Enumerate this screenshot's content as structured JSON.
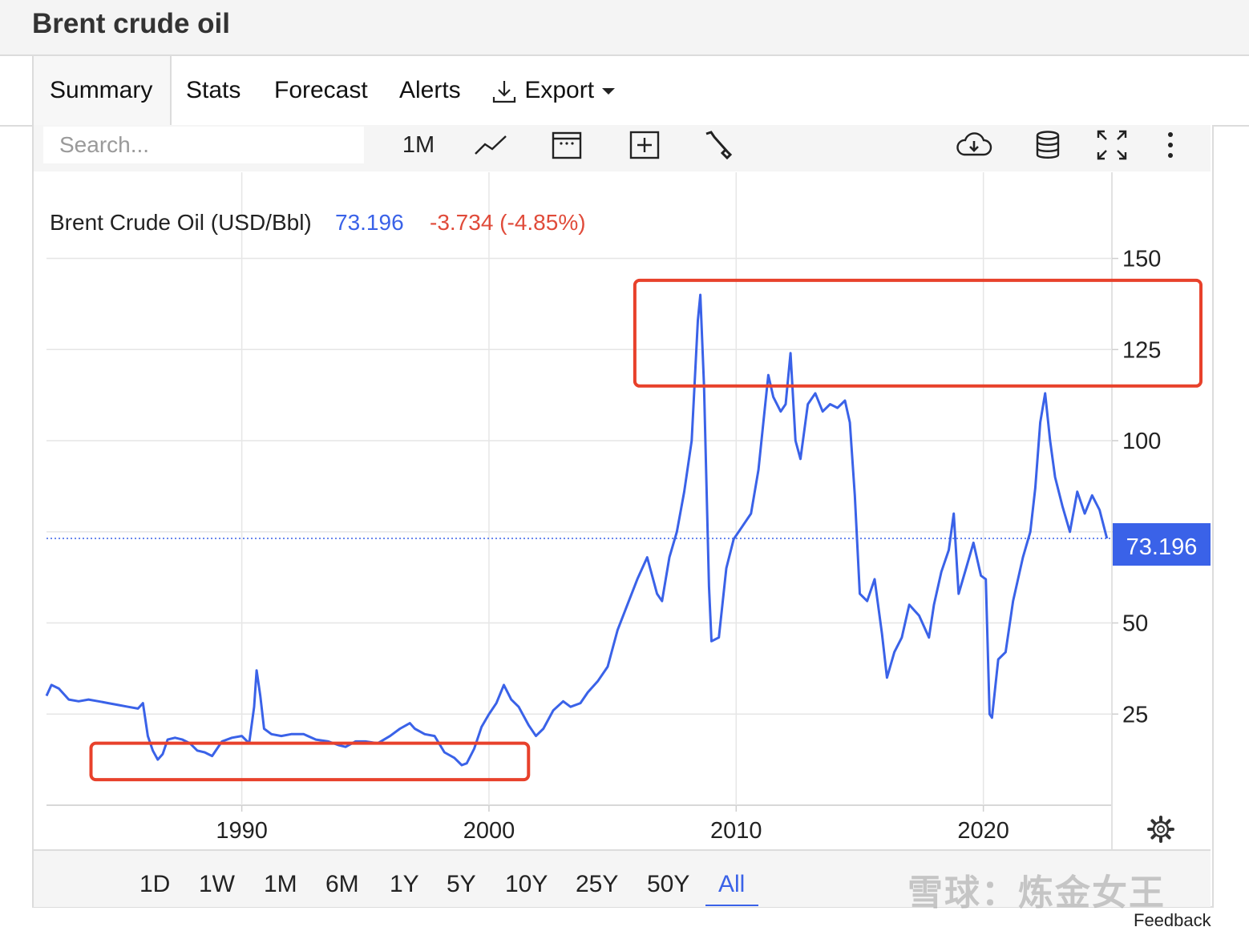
{
  "header": {
    "title": "Brent crude oil"
  },
  "tabs": [
    {
      "label": "Summary",
      "active": true
    },
    {
      "label": "Stats"
    },
    {
      "label": "Forecast"
    },
    {
      "label": "Alerts"
    },
    {
      "label": "Export",
      "icon": "download-icon"
    }
  ],
  "toolbar": {
    "search_placeholder": "Search...",
    "frequency_label": "1M",
    "icons": [
      "line-chart-icon",
      "calendar-icon",
      "add-indicator-icon",
      "wrench-icon",
      "cloud-download-icon",
      "database-icon",
      "fullscreen-icon",
      "more-icon"
    ]
  },
  "legend": {
    "name": "Brent Crude Oil (USD/Bbl)",
    "price": "73.196",
    "change": "-3.734 (-4.85%)",
    "price_color": "#3a62e8",
    "change_color": "#e04b3a"
  },
  "price_tag": "73.196",
  "colors": {
    "line": "#3a62e8",
    "highlight_box": "#e8412b",
    "grid": "#e6e6e6"
  },
  "chart_data": {
    "type": "line",
    "title": "",
    "xlabel": "",
    "ylabel": "",
    "xlim": [
      1982.1,
      2025.2
    ],
    "ylim": [
      0,
      151
    ],
    "x_ticks": [
      "1990",
      "2000",
      "2010",
      "2020"
    ],
    "x_tick_values": [
      1990,
      2000,
      2010,
      2020
    ],
    "y_ticks": [
      "25",
      "50",
      "100",
      "125",
      "150"
    ],
    "y_tick_values": [
      25,
      50,
      100,
      125,
      150
    ],
    "grid": true,
    "last_value": 73.196,
    "series": [
      {
        "x": [
          1982.1,
          1982.3,
          1982.6,
          1983.0,
          1983.4,
          1983.8,
          1984.2,
          1984.6,
          1985.0,
          1985.4,
          1985.8,
          1986.0,
          1986.2,
          1986.4,
          1986.6,
          1986.8,
          1987.0,
          1987.3,
          1987.6,
          1987.9,
          1988.2,
          1988.5,
          1988.8,
          1989.2,
          1989.6,
          1990.0,
          1990.3,
          1990.5,
          1990.6,
          1990.75,
          1990.9,
          1991.2,
          1991.6,
          1992.0,
          1992.5,
          1993.0,
          1993.5,
          1993.9,
          1994.2,
          1994.6,
          1995.0,
          1995.5,
          1996.0,
          1996.4,
          1996.8,
          1997.0,
          1997.4,
          1997.8,
          1998.2,
          1998.6,
          1998.9,
          1999.1,
          1999.4,
          1999.7,
          2000.0,
          2000.3,
          2000.6,
          2000.9,
          2001.2,
          2001.6,
          2001.9,
          2002.2,
          2002.6,
          2003.0,
          2003.3,
          2003.7,
          2004.0,
          2004.4,
          2004.8,
          2005.2,
          2005.6,
          2006.0,
          2006.4,
          2006.8,
          2007.0,
          2007.3,
          2007.6,
          2007.9,
          2008.2,
          2008.45,
          2008.55,
          2008.7,
          2008.9,
          2009.0,
          2009.3,
          2009.6,
          2009.9,
          2010.2,
          2010.6,
          2010.9,
          2011.1,
          2011.3,
          2011.5,
          2011.8,
          2012.0,
          2012.2,
          2012.4,
          2012.6,
          2012.9,
          2013.2,
          2013.5,
          2013.8,
          2014.1,
          2014.4,
          2014.6,
          2014.8,
          2015.0,
          2015.3,
          2015.6,
          2015.9,
          2016.1,
          2016.4,
          2016.7,
          2017.0,
          2017.4,
          2017.8,
          2018.0,
          2018.3,
          2018.6,
          2018.8,
          2019.0,
          2019.3,
          2019.6,
          2019.9,
          2020.1,
          2020.25,
          2020.35,
          2020.6,
          2020.9,
          2021.2,
          2021.6,
          2021.9,
          2022.1,
          2022.3,
          2022.5,
          2022.7,
          2022.9,
          2023.2,
          2023.5,
          2023.8,
          2024.1,
          2024.4,
          2024.7,
          2025.0
        ],
        "values": [
          30.0,
          33.0,
          32.0,
          29.0,
          28.5,
          29.0,
          28.5,
          28.0,
          27.5,
          27.0,
          26.5,
          28.0,
          19.0,
          15.0,
          12.5,
          14.0,
          18.0,
          18.5,
          18.0,
          17.0,
          15.0,
          14.5,
          13.5,
          17.5,
          18.5,
          19.0,
          17.0,
          27.0,
          37.0,
          30.0,
          21.0,
          19.5,
          19.0,
          19.5,
          19.5,
          18.0,
          17.5,
          16.5,
          16.0,
          17.5,
          17.5,
          17.0,
          19.0,
          21.0,
          22.5,
          21.0,
          19.5,
          19.0,
          14.5,
          13.0,
          11.0,
          11.5,
          15.5,
          21.5,
          25.0,
          28.0,
          33.0,
          29.0,
          27.0,
          22.0,
          19.0,
          21.0,
          26.0,
          28.5,
          27.0,
          28.0,
          31.0,
          34.0,
          38.0,
          48.0,
          55.0,
          62.0,
          68.0,
          58.0,
          56.0,
          68.0,
          75.0,
          86.0,
          100.0,
          133.0,
          140.0,
          115.0,
          60.0,
          45.0,
          46.0,
          65.0,
          73.0,
          76.0,
          80.0,
          92.0,
          105.0,
          118.0,
          112.0,
          108.0,
          110.0,
          124.0,
          100.0,
          95.0,
          110.0,
          113.0,
          108.0,
          110.0,
          109.0,
          111.0,
          105.0,
          85.0,
          58.0,
          56.0,
          62.0,
          47.0,
          35.0,
          42.0,
          46.0,
          55.0,
          52.0,
          46.0,
          55.0,
          64.0,
          70.0,
          80.0,
          58.0,
          65.0,
          72.0,
          63.0,
          62.0,
          25.0,
          24.0,
          40.0,
          42.0,
          56.0,
          68.0,
          75.0,
          87.0,
          105.0,
          113.0,
          100.0,
          90.0,
          82.0,
          75.0,
          86.0,
          80.0,
          85.0,
          81.0,
          73.2
        ]
      }
    ],
    "highlight_boxes": [
      {
        "x": [
          1983.9,
          2001.6
        ],
        "y": [
          7,
          17
        ]
      },
      {
        "x": [
          2005.9,
          2028.8
        ],
        "y": [
          115,
          144
        ]
      }
    ]
  },
  "range_buttons": [
    "1D",
    "1W",
    "1M",
    "6M",
    "1Y",
    "5Y",
    "10Y",
    "25Y",
    "50Y",
    "All"
  ],
  "range_active": "All",
  "feedback_label": "Feedback",
  "watermark": "雪球：炼金女王"
}
